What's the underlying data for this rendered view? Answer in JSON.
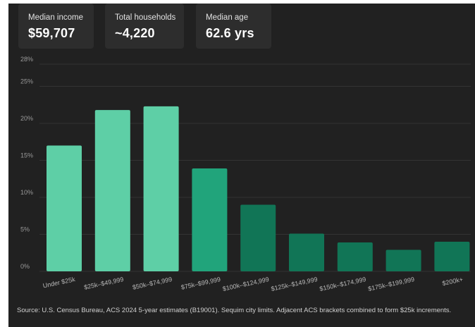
{
  "stats": [
    {
      "label": "Median income",
      "value": "$59,707"
    },
    {
      "label": "Total households",
      "value": "~4,220"
    },
    {
      "label": "Median age",
      "value": "62.6 yrs"
    }
  ],
  "chart_data": {
    "type": "bar",
    "categories": [
      "Under $25k",
      "$25k–$49,999",
      "$50k–$74,999",
      "$75k–$99,999",
      "$100k–$124,999",
      "$125k–$149,999",
      "$150k–$174,999",
      "$175k–$199,999",
      "$200k+"
    ],
    "values": [
      17.0,
      21.8,
      22.3,
      13.9,
      9.0,
      5.1,
      3.9,
      2.9,
      4.0
    ],
    "yticks": [
      "0%",
      "5%",
      "10%",
      "15%",
      "20%",
      "25%",
      "28%"
    ],
    "ytick_values": [
      0,
      5,
      10,
      15,
      20,
      25,
      28
    ],
    "ylim": [
      0,
      28
    ],
    "grid": true,
    "bar_colors": [
      "#5ecfa6",
      "#5ecfa6",
      "#5ecfa6",
      "#21a47b",
      "#117556",
      "#117556",
      "#117556",
      "#117556",
      "#117556"
    ]
  },
  "source": "Source: U.S. Census Bureau, ACS 2024 5-year estimates (B19001). Sequim city limits. Adjacent ACS brackets combined to form $25k increments."
}
